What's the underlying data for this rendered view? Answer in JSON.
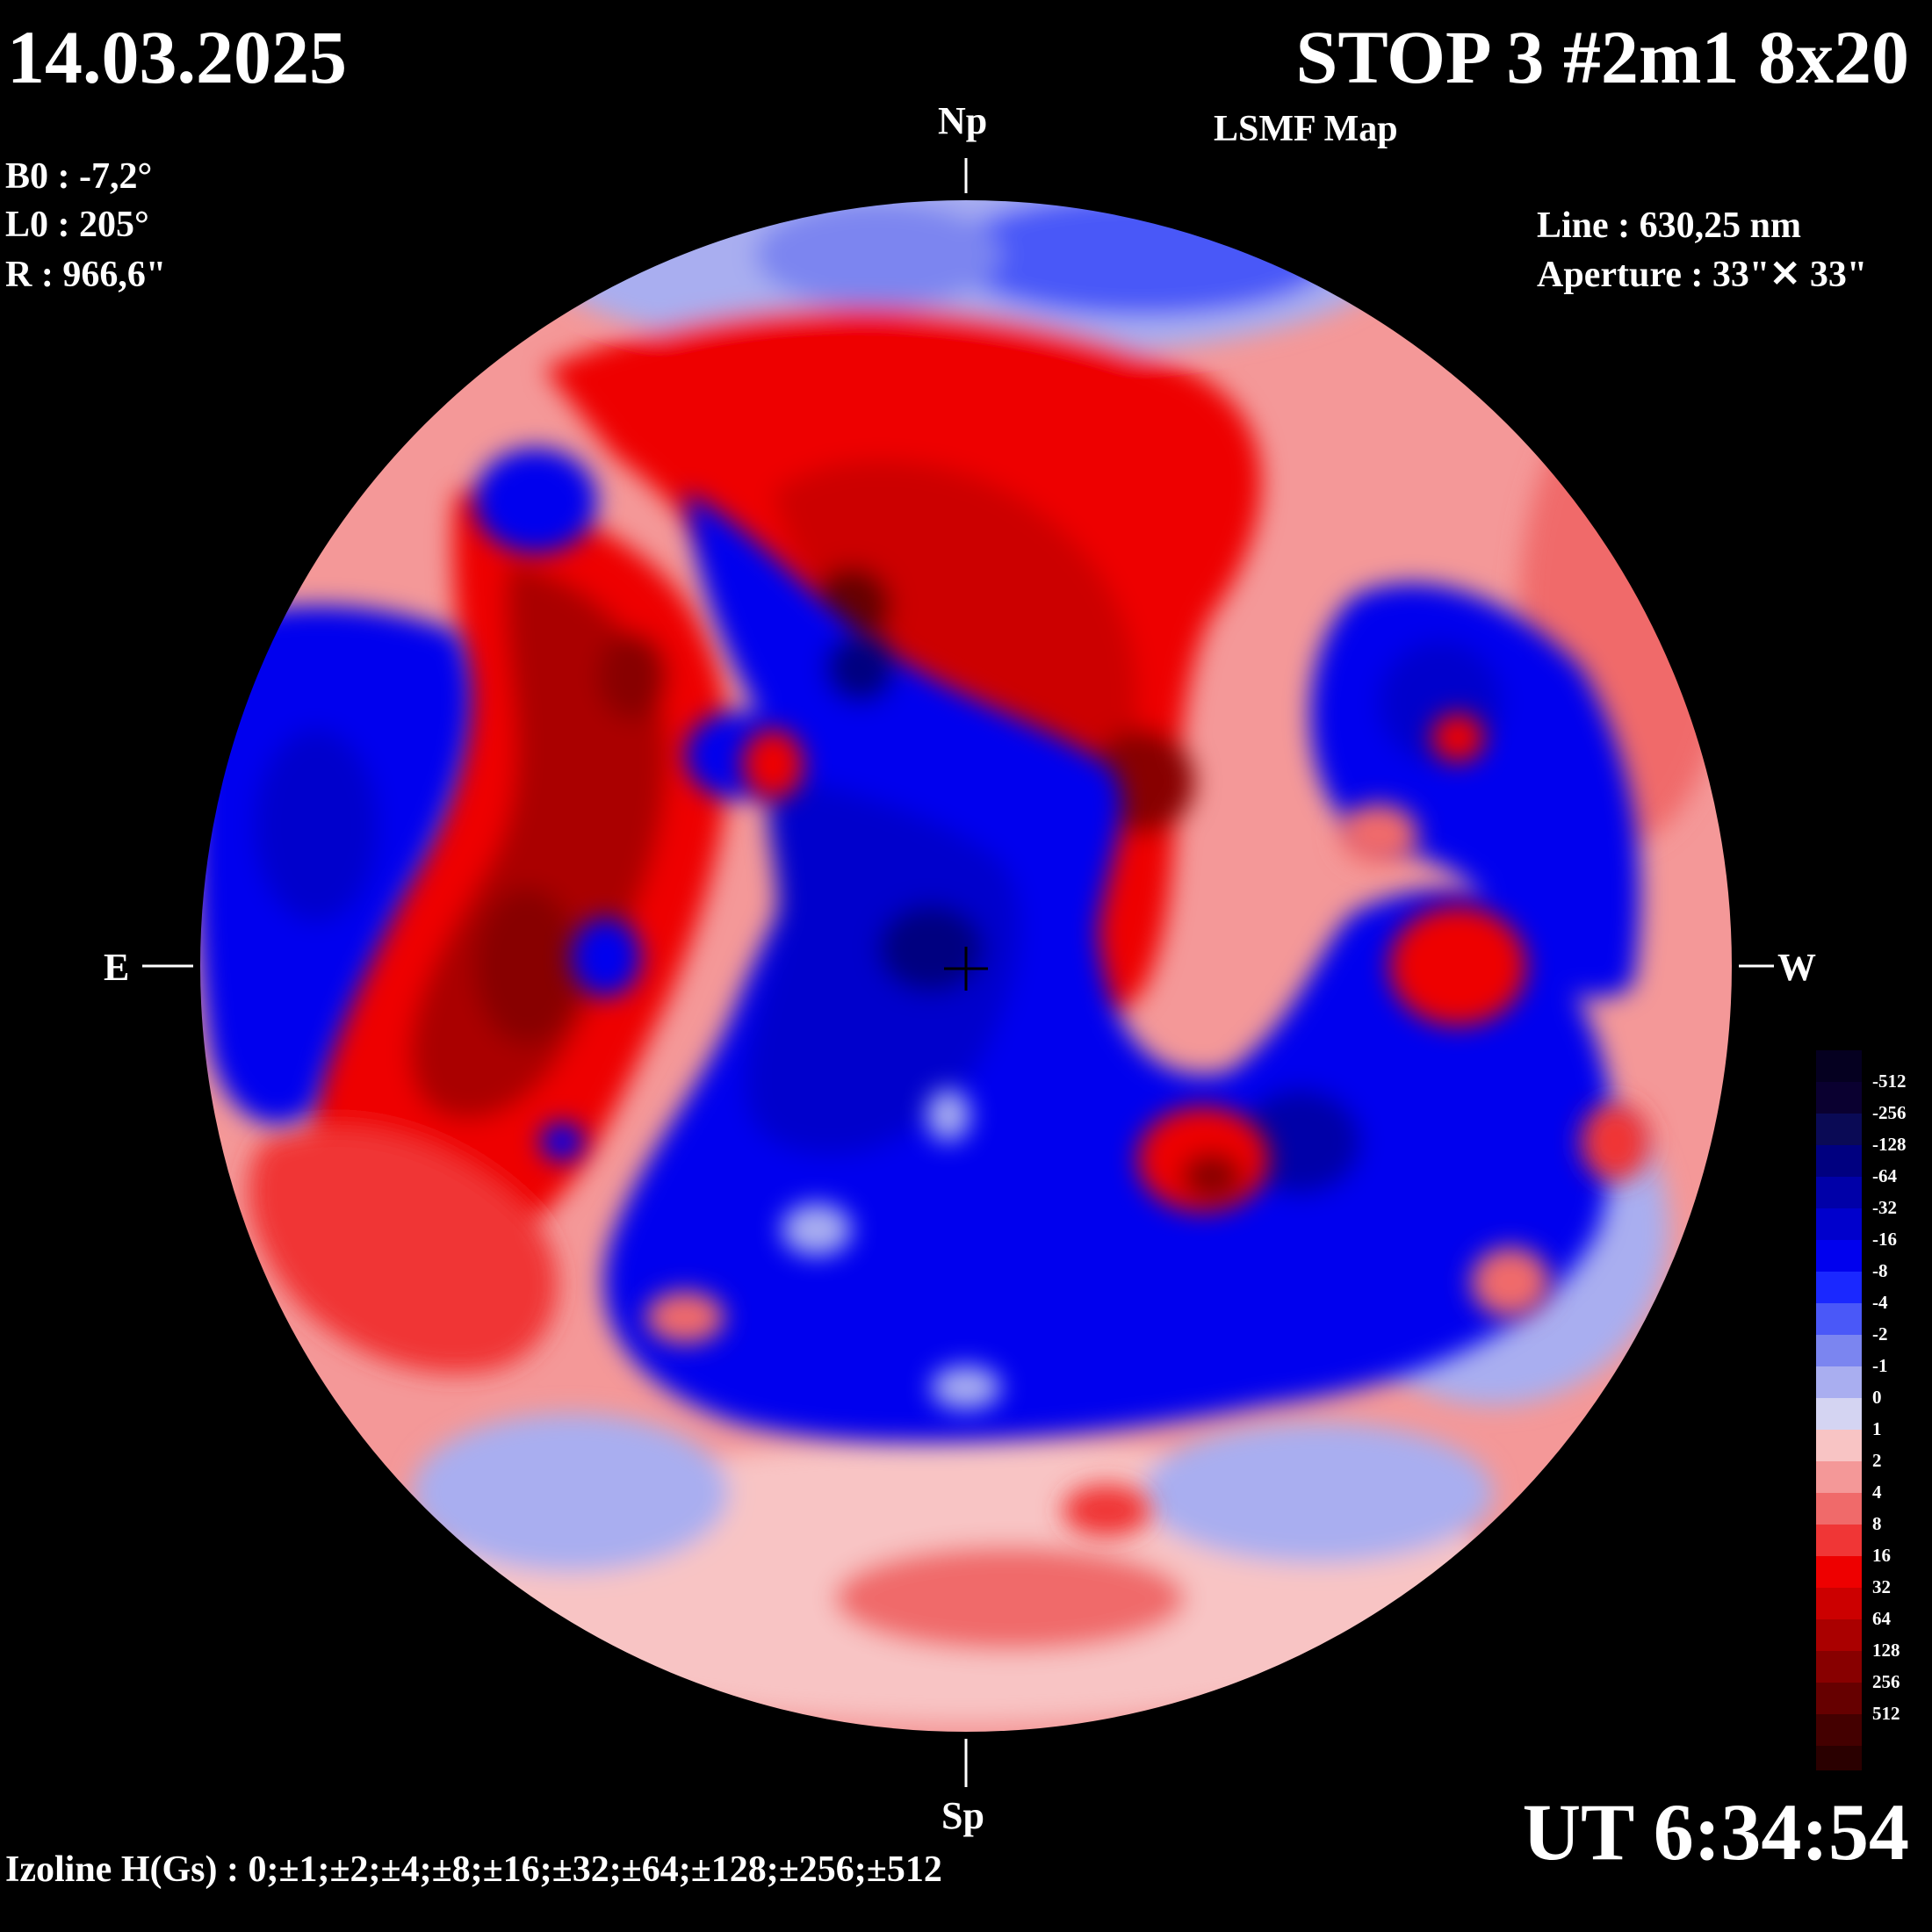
{
  "header": {
    "date": "14.03.2025",
    "title": "STOP 3 #2m1 8x20",
    "subtitle": "LSMF  Map"
  },
  "params": {
    "b0": "B0 : -7,2°",
    "l0": "L0 : 205°",
    "r": "R  : 966,6\""
  },
  "instrument": {
    "line": "Line :  630,25 nm",
    "aperture": "Aperture : 33\"✕ 33\""
  },
  "compass": {
    "north": "Np",
    "south": "Sp",
    "east": "E",
    "west": "W"
  },
  "time": "UT 6:34:54",
  "izoline": "Izoline H(Gs) : 0;±1;±2;±4;±8;±16;±32;±64;±128;±256;±512",
  "legend": {
    "levels": [
      {
        "label": "-512",
        "color": "#0a0030"
      },
      {
        "label": "-256",
        "color": "#0a0a55"
      },
      {
        "label": "-128",
        "color": "#000080"
      },
      {
        "label": "-64",
        "color": "#0000a8"
      },
      {
        "label": "-32",
        "color": "#0000cc"
      },
      {
        "label": "-16",
        "color": "#0000ee"
      },
      {
        "label": "-8",
        "color": "#1a28ff"
      },
      {
        "label": "-4",
        "color": "#4a58f8"
      },
      {
        "label": "-2",
        "color": "#7b85f0"
      },
      {
        "label": "-1",
        "color": "#a9aef0"
      },
      {
        "label": "0",
        "color": "#d4d4f2"
      },
      {
        "label": "1",
        "color": "#f8c4c4"
      },
      {
        "label": "2",
        "color": "#f49898"
      },
      {
        "label": "4",
        "color": "#f06a6a"
      },
      {
        "label": "8",
        "color": "#f03636"
      },
      {
        "label": "16",
        "color": "#ee0000"
      },
      {
        "label": "32",
        "color": "#cc0000"
      },
      {
        "label": "64",
        "color": "#aa0000"
      },
      {
        "label": "128",
        "color": "#880000"
      },
      {
        "label": "256",
        "color": "#660000"
      },
      {
        "label": "512",
        "color": "#440000"
      }
    ],
    "top_color": "#050020",
    "bottom_color": "#2a0000"
  },
  "colors": {
    "background": "#000000",
    "neg_strong": "#000080",
    "neg": "#0000ee",
    "neg_weak": "#a9aef0",
    "pos_weak": "#f8c4c4",
    "pos": "#ee0000",
    "pos_strong": "#880000",
    "izoline_zero": "#ffffff"
  }
}
